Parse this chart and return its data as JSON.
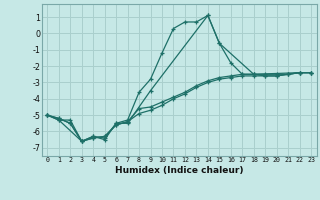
{
  "xlabel": "Humidex (Indice chaleur)",
  "background_color": "#c6e8e6",
  "grid_color": "#aacfcd",
  "line_color": "#1e7068",
  "xlim": [
    -0.5,
    23.5
  ],
  "ylim": [
    -7.5,
    1.8
  ],
  "yticks": [
    1,
    0,
    -1,
    -2,
    -3,
    -4,
    -5,
    -6,
    -7
  ],
  "xticks": [
    0,
    1,
    2,
    3,
    4,
    5,
    6,
    7,
    8,
    9,
    10,
    11,
    12,
    13,
    14,
    15,
    16,
    17,
    18,
    19,
    20,
    21,
    22,
    23
  ],
  "series": [
    {
      "x": [
        0,
        1,
        2,
        3,
        4,
        5,
        6,
        7,
        8,
        9,
        10,
        11,
        12,
        13,
        14,
        15,
        16,
        17,
        18,
        19,
        20,
        21,
        22,
        23
      ],
      "y": [
        -5.0,
        -5.3,
        -5.3,
        -6.6,
        -6.3,
        -6.4,
        -5.5,
        -5.3,
        -3.6,
        -2.8,
        -1.2,
        0.3,
        0.7,
        0.7,
        1.1,
        -0.6,
        -1.8,
        -2.5,
        -2.5,
        -2.6,
        -2.6,
        -2.5,
        -2.4,
        -2.4
      ],
      "marker": true
    },
    {
      "x": [
        0,
        1,
        2,
        3,
        4,
        5,
        6,
        7,
        8,
        9,
        10,
        11,
        12,
        13,
        14,
        15,
        16,
        17,
        18,
        19,
        20,
        21,
        22,
        23
      ],
      "y": [
        -5.0,
        -5.2,
        -5.5,
        -6.6,
        -6.4,
        -6.3,
        -5.6,
        -5.4,
        -4.9,
        -4.7,
        -4.4,
        -4.0,
        -3.7,
        -3.3,
        -3.0,
        -2.8,
        -2.7,
        -2.6,
        -2.6,
        -2.6,
        -2.6,
        -2.5,
        -2.4,
        -2.4
      ],
      "marker": true
    },
    {
      "x": [
        0,
        1,
        2,
        3,
        4,
        5,
        6,
        7,
        8,
        9,
        10,
        11,
        12,
        13,
        14,
        15,
        16,
        17,
        18,
        19,
        20,
        21,
        22,
        23
      ],
      "y": [
        -5.0,
        -5.2,
        -5.5,
        -6.6,
        -6.4,
        -6.3,
        -5.6,
        -5.4,
        -4.6,
        -4.5,
        -4.2,
        -3.9,
        -3.6,
        -3.2,
        -2.9,
        -2.7,
        -2.6,
        -2.5,
        -2.5,
        -2.5,
        -2.5,
        -2.5,
        -2.4,
        -2.4
      ],
      "marker": true
    },
    {
      "x": [
        0,
        1,
        3,
        4,
        5,
        6,
        7,
        9,
        14,
        15,
        18,
        22,
        23
      ],
      "y": [
        -5.0,
        -5.3,
        -6.6,
        -6.3,
        -6.5,
        -5.5,
        -5.5,
        -3.5,
        1.1,
        -0.6,
        -2.5,
        -2.4,
        -2.4
      ],
      "marker": true
    }
  ]
}
